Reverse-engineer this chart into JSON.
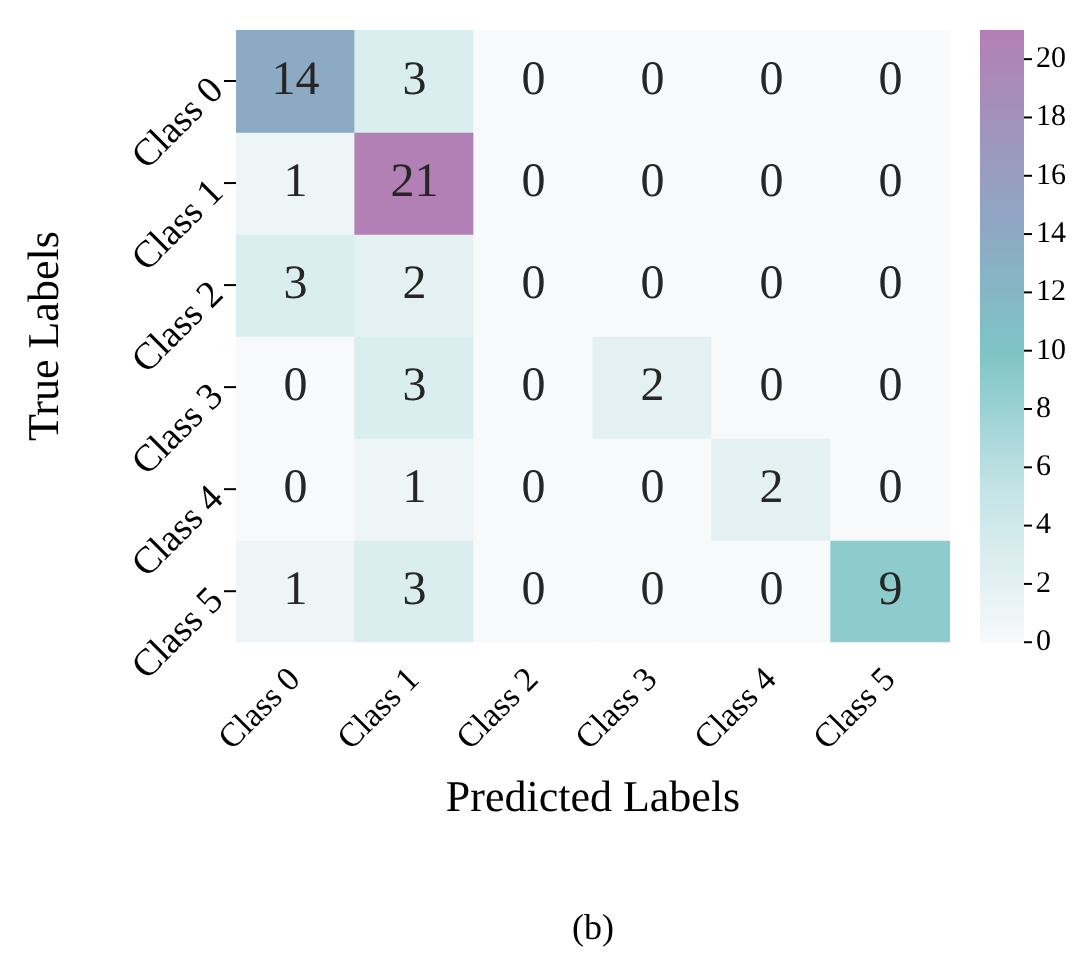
{
  "chart_data": {
    "type": "heatmap",
    "xlabel": "Predicted Labels",
    "ylabel": "True Labels",
    "categories": [
      "Class 0",
      "Class 1",
      "Class 2",
      "Class 3",
      "Class 4",
      "Class 5"
    ],
    "y_categories": [
      "Class 0",
      "Class 1",
      "Class 2",
      "Class 3",
      "Class 4",
      "Class 5"
    ],
    "cells": [
      [
        14,
        3,
        0,
        0,
        0,
        0
      ],
      [
        1,
        21,
        0,
        0,
        0,
        0
      ],
      [
        3,
        2,
        0,
        0,
        0,
        0
      ],
      [
        0,
        3,
        0,
        2,
        0,
        0
      ],
      [
        0,
        1,
        0,
        0,
        2,
        0
      ],
      [
        1,
        3,
        0,
        0,
        0,
        9
      ]
    ],
    "clim": [
      0,
      21
    ],
    "cticks": [
      0,
      2,
      4,
      6,
      8,
      10,
      12,
      14,
      16,
      18,
      20
    ],
    "data_labels": true,
    "legend": false,
    "annotations": [
      "(b)"
    ]
  }
}
